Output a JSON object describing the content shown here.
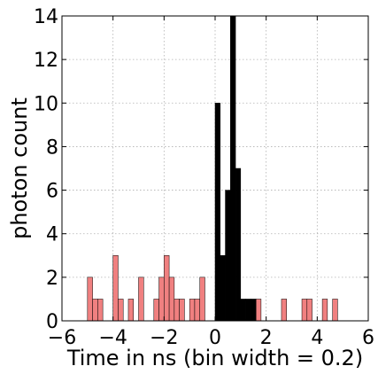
{
  "chart_data": {
    "type": "bar",
    "title": "",
    "xlabel": "Time in ns (bin width = 0.2)",
    "ylabel": "photon count",
    "xlim": [
      -6,
      6
    ],
    "ylim": [
      0,
      14
    ],
    "x_ticks": [
      "−6",
      "−4",
      "−2",
      "0",
      "2",
      "4",
      "6"
    ],
    "y_ticks": [
      "0",
      "2",
      "4",
      "6",
      "8",
      "10",
      "12",
      "14"
    ],
    "bin_width": 0.2,
    "grid": true,
    "colors": {
      "background_bins": "#f08080",
      "signal_bins": "#000000"
    },
    "series": [
      {
        "color": "#f08080",
        "bins": [
          {
            "x": -5.0,
            "value": 2
          },
          {
            "x": -4.8,
            "value": 1
          },
          {
            "x": -4.6,
            "value": 1
          },
          {
            "x": -4.0,
            "value": 3
          },
          {
            "x": -3.8,
            "value": 1
          },
          {
            "x": -3.4,
            "value": 1
          },
          {
            "x": -3.0,
            "value": 2
          },
          {
            "x": -2.4,
            "value": 1
          },
          {
            "x": -2.2,
            "value": 2
          },
          {
            "x": -2.0,
            "value": 3
          },
          {
            "x": -1.8,
            "value": 2
          },
          {
            "x": -1.6,
            "value": 1
          },
          {
            "x": -1.4,
            "value": 1
          },
          {
            "x": -1.0,
            "value": 1
          },
          {
            "x": -0.8,
            "value": 1
          },
          {
            "x": -0.6,
            "value": 2
          },
          {
            "x": 1.6,
            "value": 1
          },
          {
            "x": 2.6,
            "value": 1
          },
          {
            "x": 3.4,
            "value": 1
          },
          {
            "x": 3.6,
            "value": 1
          },
          {
            "x": 4.2,
            "value": 1
          },
          {
            "x": 4.6,
            "value": 1
          }
        ]
      },
      {
        "color": "#000000",
        "bins": [
          {
            "x": 0.0,
            "value": 10
          },
          {
            "x": 0.2,
            "value": 3
          },
          {
            "x": 0.4,
            "value": 6
          },
          {
            "x": 0.6,
            "value": 14
          },
          {
            "x": 0.8,
            "value": 7
          },
          {
            "x": 1.0,
            "value": 1
          },
          {
            "x": 1.2,
            "value": 1
          },
          {
            "x": 1.4,
            "value": 1
          }
        ]
      }
    ]
  }
}
